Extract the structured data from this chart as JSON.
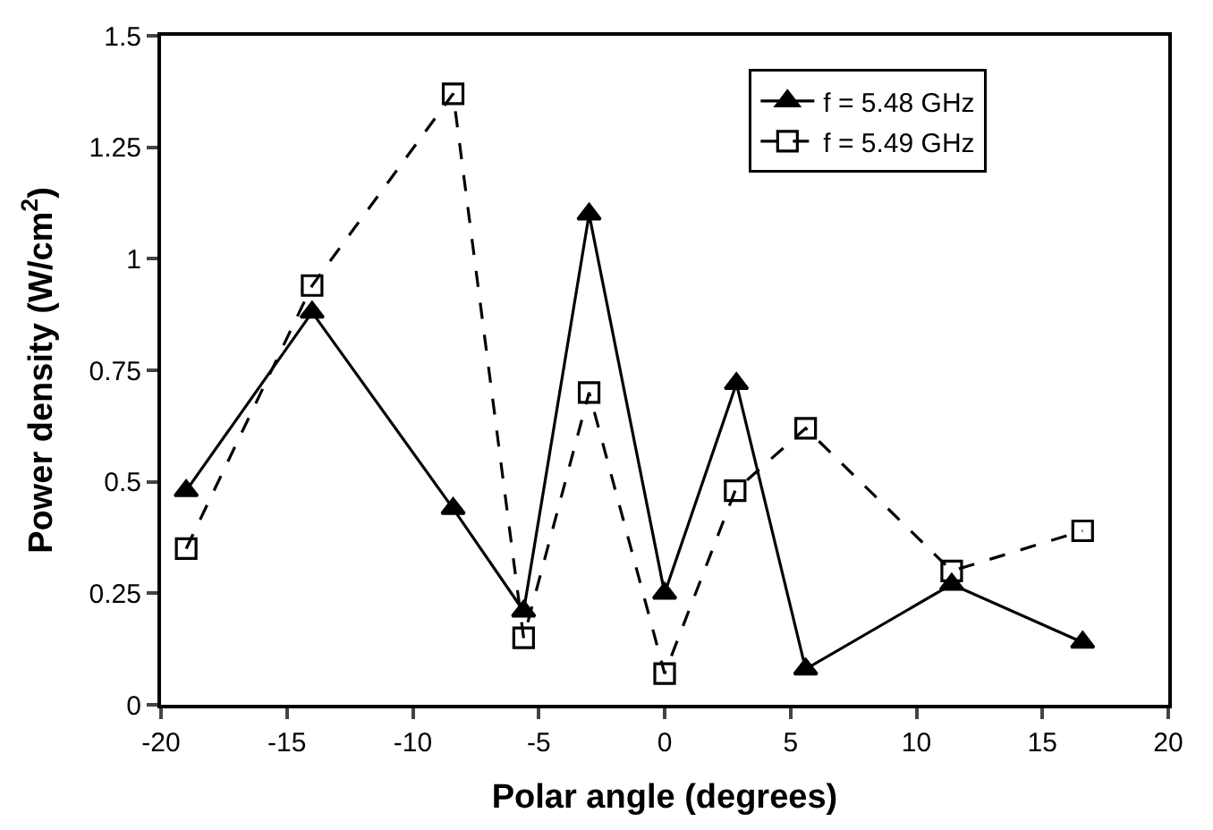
{
  "chart_data": {
    "type": "line",
    "xlabel": "Polar angle (degrees)",
    "ylabel": "Power density (W/cm$^{2}$)",
    "xlim": [
      -20,
      20
    ],
    "xticks": [
      -20,
      -15,
      -10,
      -5,
      0,
      5,
      10,
      15,
      20
    ],
    "ylim": [
      0,
      1.5
    ],
    "yticks": [
      0,
      0.25,
      0.5,
      0.75,
      1,
      1.25,
      1.5
    ],
    "legend": "top right",
    "series": [
      {
        "name": "f = 5.48 GHz",
        "color": "#000000",
        "marker": "triangle",
        "line_style": "solid",
        "x": [
          -19,
          -14,
          -8.4,
          -5.6,
          -3,
          0,
          2.85,
          5.6,
          11.4,
          16.6
        ],
        "values": [
          0.48,
          0.88,
          0.44,
          0.21,
          1.1,
          0.25,
          0.72,
          0.08,
          0.27,
          0.14
        ]
      },
      {
        "name": "f = 5.49 GHz",
        "color": "#000000",
        "marker": "square",
        "line_style": "dashed",
        "x": [
          -19,
          -14,
          -8.4,
          -5.6,
          -3,
          0,
          2.8,
          5.6,
          11.4,
          16.6
        ],
        "values": [
          0.35,
          0.94,
          1.37,
          0.15,
          0.7,
          0.07,
          0.48,
          0.62,
          0.3,
          0.39
        ]
      }
    ]
  }
}
